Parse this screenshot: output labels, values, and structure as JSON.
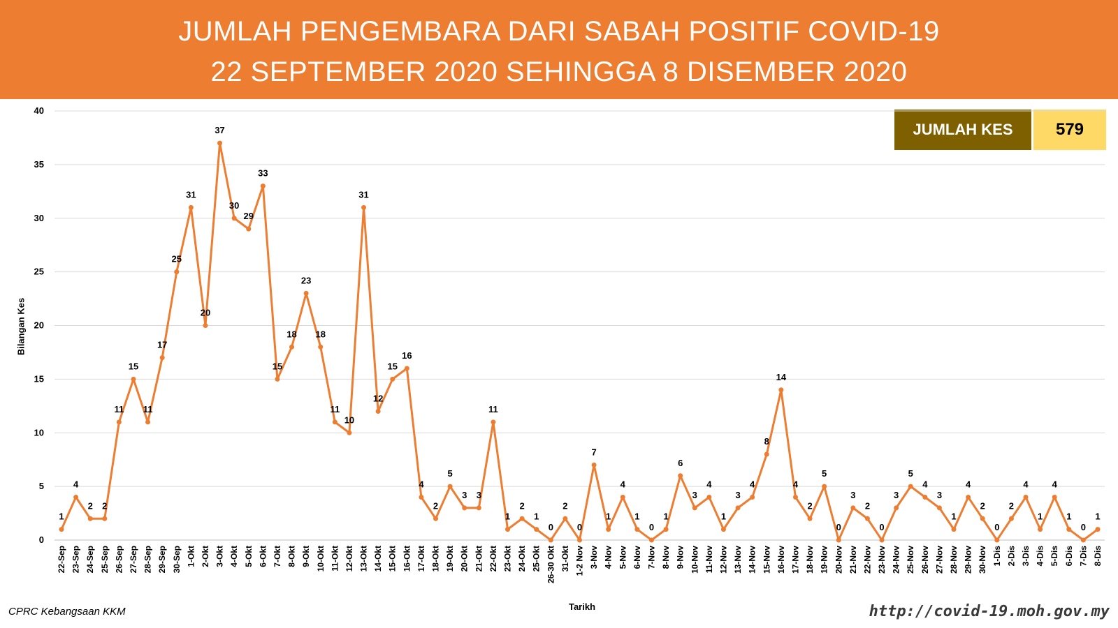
{
  "header": {
    "title_line1": "JUMLAH PENGEMBARA DARI SABAH POSITIF COVID-19",
    "title_line2": "22 SEPTEMBER 2020 SEHINGGA 8 DISEMBER 2020"
  },
  "total": {
    "label": "JUMLAH KES",
    "value": "579"
  },
  "footer": {
    "source": "CPRC Kebangsaan KKM",
    "url": "http://covid-19.moh.gov.my"
  },
  "colors": {
    "header_bg": "#ED7D31",
    "line": "#ED7D31",
    "total_label_bg": "#7F6000",
    "total_value_bg": "#FFD966",
    "grid": "#D9D9D9"
  },
  "chart_data": {
    "type": "line",
    "xlabel": "Tarikh",
    "ylabel": "Bilangan Kes",
    "ylim": [
      0,
      40
    ],
    "yticks": [
      0,
      5,
      10,
      15,
      20,
      25,
      30,
      35,
      40
    ],
    "grid": true,
    "data_labels": true,
    "categories": [
      "22-Sep",
      "23-Sep",
      "24-Sep",
      "25-Sep",
      "26-Sep",
      "27-Sep",
      "28-Sep",
      "29-Sep",
      "30-Sep",
      "1-Okt",
      "2-Okt",
      "3-Okt",
      "4-Okt",
      "5-Okt",
      "6-Okt",
      "7-Okt",
      "8-Okt",
      "9-Okt",
      "10-Okt",
      "11-Okt",
      "12-Okt",
      "13-Okt",
      "14-Okt",
      "15-Okt",
      "16-Okt",
      "17-Okt",
      "18-Okt",
      "19-Okt",
      "20-Okt",
      "21-Okt",
      "22-Okt",
      "23-Okt",
      "24-Okt",
      "25-Okt",
      "26-30 Okt",
      "31-Okt",
      "1-2 Nov",
      "3-Nov",
      "4-Nov",
      "5-Nov",
      "6-Nov",
      "7-Nov",
      "8-Nov",
      "9-Nov",
      "10-Nov",
      "11-Nov",
      "12-Nov",
      "13-Nov",
      "14-Nov",
      "15-Nov",
      "16-Nov",
      "17-Nov",
      "18-Nov",
      "19-Nov",
      "20-Nov",
      "21-Nov",
      "22-Nov",
      "23-Nov",
      "24-Nov",
      "25-Nov",
      "26-Nov",
      "27-Nov",
      "28-Nov",
      "29-Nov",
      "30-Nov",
      "1-Dis",
      "2-Dis",
      "3-Dis",
      "4-Dis",
      "5-Dis",
      "6-Dis",
      "7-Dis",
      "8-Dis"
    ],
    "values": [
      1,
      4,
      2,
      2,
      11,
      15,
      11,
      17,
      25,
      31,
      20,
      37,
      30,
      29,
      33,
      15,
      18,
      23,
      18,
      11,
      10,
      31,
      12,
      15,
      16,
      4,
      2,
      5,
      3,
      3,
      11,
      1,
      2,
      1,
      0,
      2,
      0,
      7,
      1,
      4,
      1,
      0,
      1,
      6,
      3,
      4,
      1,
      3,
      4,
      8,
      14,
      4,
      2,
      5,
      0,
      3,
      2,
      0,
      3,
      5,
      4,
      3,
      1,
      4,
      2,
      0,
      2,
      4,
      1,
      4,
      1,
      0,
      1
    ]
  }
}
